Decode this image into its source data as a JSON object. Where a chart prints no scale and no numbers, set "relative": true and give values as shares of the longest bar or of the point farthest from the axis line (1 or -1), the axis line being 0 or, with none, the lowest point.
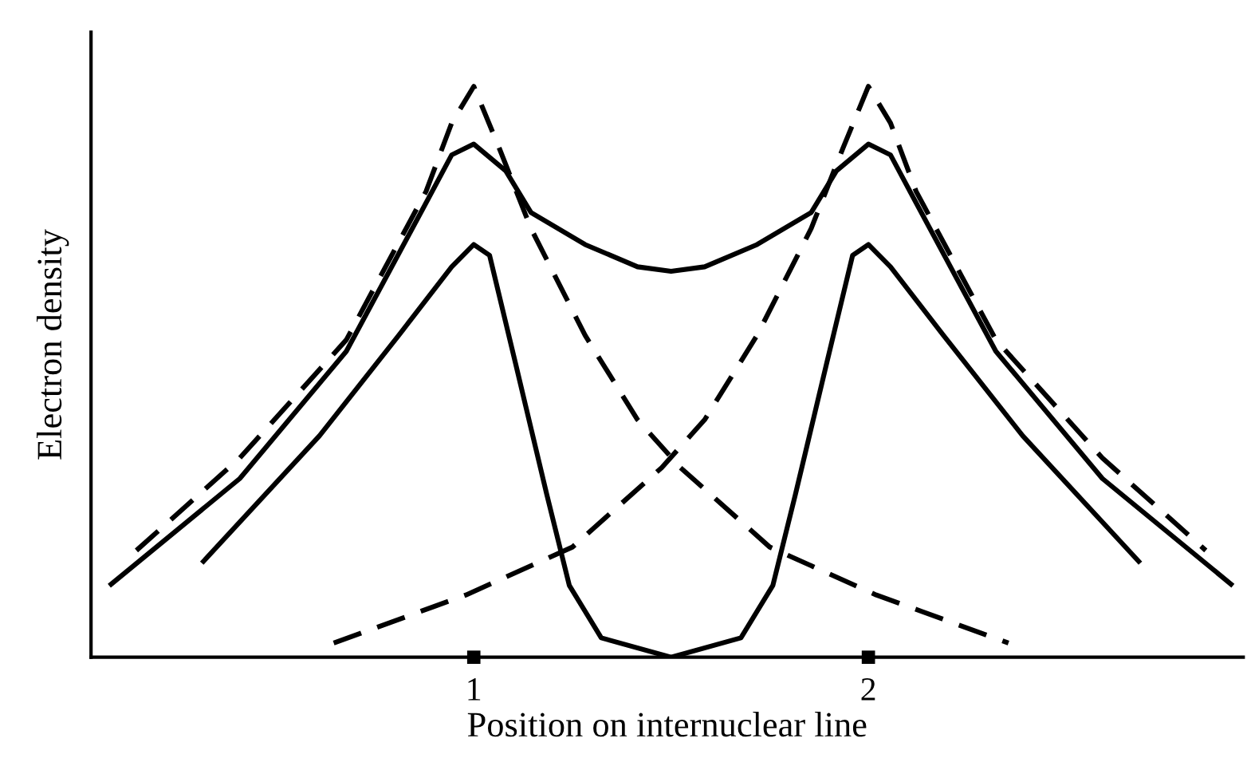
{
  "chart_data": {
    "type": "line",
    "relative": true,
    "xlabel": "Position on internuclear line",
    "ylabel": "Electron density",
    "xlim": [
      0.03,
      2.95
    ],
    "xticks": [
      1,
      2
    ],
    "tick_labels": "x",
    "grid": false,
    "legend": false,
    "marker": "none",
    "series": [
      {
        "color": "#000000",
        "line_style": "dashed",
        "x": [
          0.145,
          0.407,
          0.677,
          0.879,
          0.944,
          1,
          1.065,
          1.145,
          1.282,
          1.415,
          1.524,
          1.75,
          2.02,
          2.355
        ],
        "values": [
          0.187,
          0.349,
          0.556,
          0.816,
          0.936,
          1,
          0.891,
          0.751,
          0.564,
          0.416,
          0.332,
          0.193,
          0.109,
          0.025
        ]
      },
      {
        "color": "#000000",
        "line_style": "dashed",
        "x": [
          0.645,
          0.98,
          1.25,
          1.476,
          1.585,
          1.718,
          1.855,
          1.935,
          2,
          2.056,
          2.121,
          2.323,
          2.593,
          2.855
        ],
        "values": [
          0.025,
          0.109,
          0.193,
          0.332,
          0.416,
          0.564,
          0.751,
          0.891,
          1,
          0.936,
          0.816,
          0.556,
          0.349,
          0.187
        ]
      },
      {
        "color": "#000000",
        "line_style": "solid",
        "x": [
          0.081,
          0.407,
          0.677,
          0.879,
          0.944,
          1,
          1.081,
          1.145,
          1.282,
          1.415,
          1.5,
          1.585,
          1.718,
          1.855,
          1.919,
          2,
          2.056,
          2.121,
          2.323,
          2.593,
          2.919
        ],
        "values": [
          0.128,
          0.313,
          0.536,
          0.796,
          0.88,
          0.899,
          0.852,
          0.779,
          0.723,
          0.684,
          0.676,
          0.684,
          0.723,
          0.779,
          0.852,
          0.899,
          0.88,
          0.796,
          0.536,
          0.313,
          0.128
        ]
      },
      {
        "color": "#000000",
        "line_style": "solid",
        "x": [
          0.315,
          0.609,
          0.81,
          0.944,
          1,
          1.04,
          1.105,
          1.185,
          1.242,
          1.323,
          1.5,
          1.677,
          1.758,
          1.815,
          1.895,
          1.96,
          2,
          2.056,
          2.19,
          2.391,
          2.685
        ],
        "values": [
          0.168,
          0.388,
          0.564,
          0.684,
          0.723,
          0.704,
          0.517,
          0.285,
          0.126,
          0.034,
          0,
          0.034,
          0.126,
          0.285,
          0.517,
          0.704,
          0.723,
          0.684,
          0.564,
          0.388,
          0.168
        ]
      }
    ]
  }
}
